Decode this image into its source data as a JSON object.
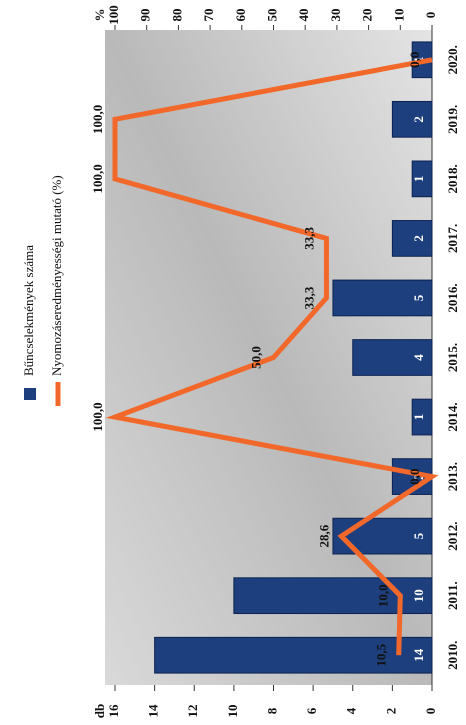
{
  "chart_data": {
    "type": "combo",
    "categories": [
      "2010.",
      "2011.",
      "2012.",
      "2013.",
      "2014.",
      "2015.",
      "2016.",
      "2017.",
      "2018.",
      "2019.",
      "2020."
    ],
    "series": [
      {
        "name": "Bűncselekmények száma",
        "type": "bar",
        "color": "#1d3f7e",
        "values": [
          14,
          10,
          5,
          2,
          1,
          4,
          5,
          2,
          1,
          2,
          1
        ]
      },
      {
        "name": "Nyomozáseredményességi mutató (%)",
        "type": "line",
        "axis": "y2",
        "color": "#f2682a",
        "values": [
          10.5,
          10.0,
          28.6,
          0.0,
          100.0,
          50.0,
          33.3,
          33.3,
          100.0,
          100.0,
          0.0
        ],
        "value_labels": [
          "10,5",
          "10,0",
          "28,6",
          "0,0",
          "100,0",
          "50,0",
          "33,3",
          "33,3",
          "100,0",
          "100,0",
          "0,0"
        ]
      }
    ],
    "ylabel": "db",
    "y2label": "%",
    "ylim": [
      0,
      16
    ],
    "yticks": [
      0,
      2,
      4,
      6,
      8,
      10,
      12,
      14,
      16
    ],
    "y2lim": [
      0,
      100
    ],
    "y2ticks": [
      0,
      10,
      20,
      30,
      40,
      50,
      60,
      70,
      80,
      90,
      100
    ]
  }
}
